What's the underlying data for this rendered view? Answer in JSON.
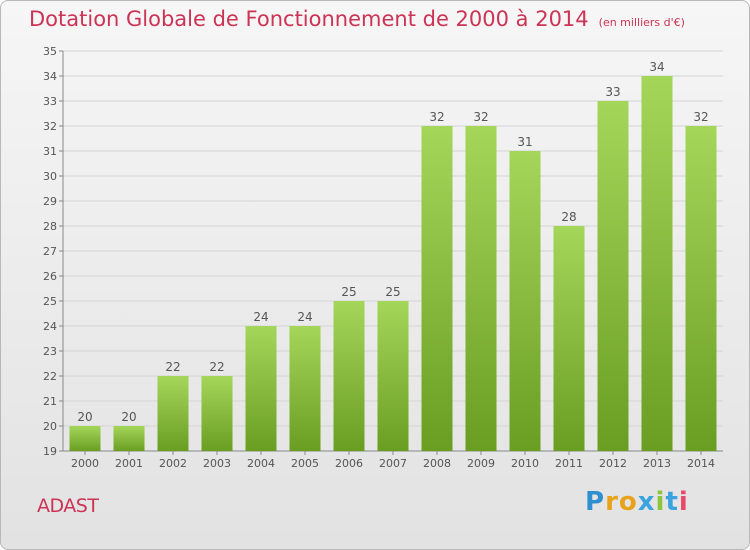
{
  "header": {
    "title": "Dotation Globale de Fonctionnement de 2000 à 2014",
    "subtitle": "(en milliers d'€)"
  },
  "footer": {
    "commune": "ADAST",
    "brand_letters": [
      "P",
      "r",
      "o",
      "x",
      "i",
      "t",
      "i"
    ],
    "brand_colors": [
      "#2f8fd0",
      "#e8a21c",
      "#e8a21c",
      "#3aa3e0",
      "#8cc63f",
      "#3aa3e0",
      "#e84a6a"
    ]
  },
  "colors": {
    "bar_light": "#a4d65a",
    "bar_dark": "#6a9e22",
    "title": "#cc3355",
    "axis_text": "#555555"
  },
  "chart_data": {
    "type": "bar",
    "categories": [
      "2000",
      "2001",
      "2002",
      "2003",
      "2004",
      "2005",
      "2006",
      "2007",
      "2008",
      "2009",
      "2010",
      "2011",
      "2012",
      "2013",
      "2014"
    ],
    "values": [
      20,
      20,
      22,
      22,
      24,
      24,
      25,
      25,
      32,
      32,
      31,
      28,
      33,
      34,
      32
    ],
    "ylim": [
      19,
      35
    ],
    "yticks": [
      19,
      20,
      21,
      22,
      23,
      24,
      25,
      26,
      27,
      28,
      29,
      30,
      31,
      32,
      33,
      34,
      35
    ],
    "grid": true,
    "legend": "none"
  }
}
